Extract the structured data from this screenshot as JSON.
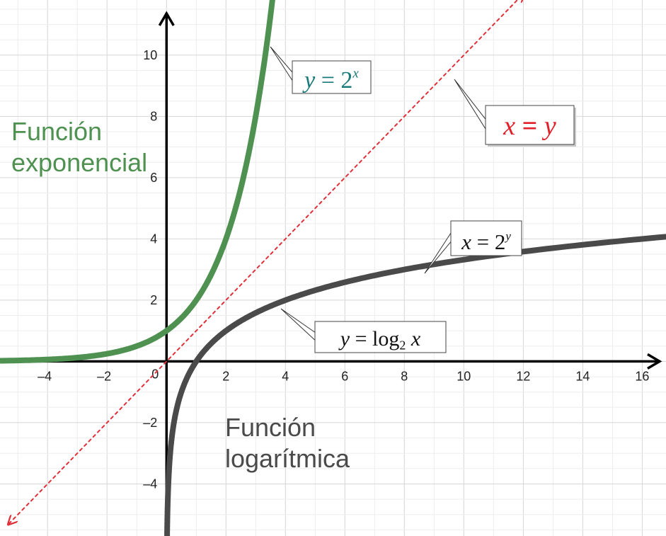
{
  "chart_data": {
    "type": "line",
    "title": "",
    "xlabel": "",
    "ylabel": "",
    "xlim": [
      -5.6,
      16.8
    ],
    "ylim": [
      -5.7,
      11.8
    ],
    "grid": true,
    "x_ticks": [
      -4,
      -2,
      2,
      4,
      6,
      8,
      10,
      12,
      14,
      16
    ],
    "y_ticks": [
      10,
      8,
      6,
      4,
      2,
      -2,
      -4
    ],
    "origin_label": "0",
    "series": [
      {
        "name": "",
        "color": "#4e9150",
        "function": "y = 2^x",
        "x": [
          -5.6,
          -4,
          -3,
          -2,
          -1,
          0,
          1,
          2,
          2.5,
          3,
          3.3,
          3.5,
          3.7
        ],
        "y": [
          0.021,
          0.063,
          0.125,
          0.25,
          0.5,
          1,
          2,
          4,
          5.66,
          8,
          9.85,
          11.31,
          13.0
        ]
      },
      {
        "name": "",
        "color": "#4a4a4a",
        "function": "y = log2 x",
        "x": [
          0.018,
          0.05,
          0.125,
          0.25,
          0.5,
          1,
          2,
          4,
          6,
          8,
          10,
          12,
          14,
          16.8
        ],
        "y": [
          -5.8,
          -4.32,
          -3,
          -2,
          -1,
          0,
          1,
          2,
          2.58,
          3,
          3.32,
          3.58,
          3.81,
          4.07
        ]
      },
      {
        "name": "",
        "color": "#e0303a",
        "dashed": true,
        "function": "y = x",
        "x": [
          -5.3,
          12
        ],
        "y": [
          -5.3,
          12
        ]
      }
    ],
    "annotations": [
      {
        "parts": [
          "y",
          " = 2",
          "x"
        ],
        "color": "#1a7a7a"
      },
      {
        "parts": [
          "x",
          " = ",
          "y"
        ],
        "color": "#e0202a"
      },
      {
        "parts": [
          "x",
          " = 2",
          "y"
        ],
        "color": "#111111"
      },
      {
        "parts": [
          "y",
          " = log",
          "2",
          " x"
        ],
        "color": "#111111"
      }
    ],
    "side_labels": [
      {
        "lines": [
          "Función",
          "exponencial"
        ],
        "color": "#4e9150"
      },
      {
        "lines": [
          "Función",
          "logarítmica"
        ],
        "color": "#4a4a4a"
      }
    ]
  }
}
